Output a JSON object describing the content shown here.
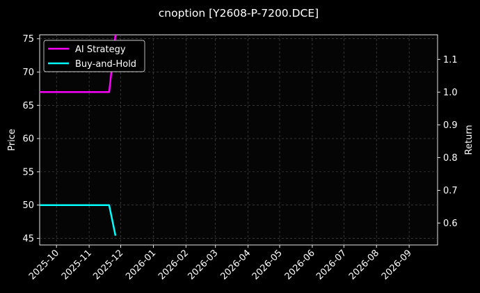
{
  "chart_data": {
    "type": "line",
    "title": "cnoption [Y2608-P-7200.DCE]",
    "ylabel_left": "Price",
    "ylabel_right": "Return",
    "left_ylim": [
      44.0,
      75.6
    ],
    "right_ylim": [
      0.533,
      1.175
    ],
    "left_yticks": [
      45,
      50,
      55,
      60,
      65,
      70,
      75
    ],
    "right_yticks": [
      0.6,
      0.7,
      0.8,
      0.9,
      1.0,
      1.1
    ],
    "xlim": [
      "2025-09-15",
      "2026-09-28"
    ],
    "xticks": [
      "2025-10",
      "2025-11",
      "2025-12",
      "2026-01",
      "2026-02",
      "2026-03",
      "2026-04",
      "2026-05",
      "2026-06",
      "2026-07",
      "2026-08",
      "2026-09"
    ],
    "grid": true,
    "legend_position": "upper left",
    "series": [
      {
        "name": "AI Strategy",
        "axis": "right",
        "color": "#ff00ff",
        "x": [
          "2025-09-15",
          "2025-11-20",
          "2025-11-26"
        ],
        "y": [
          1.0,
          1.0,
          1.175
        ]
      },
      {
        "name": "Buy-and-Hold",
        "axis": "left",
        "color": "#00ffff",
        "x": [
          "2025-09-15",
          "2025-11-20",
          "2025-11-26"
        ],
        "y": [
          50.0,
          50.0,
          45.4
        ]
      }
    ]
  }
}
